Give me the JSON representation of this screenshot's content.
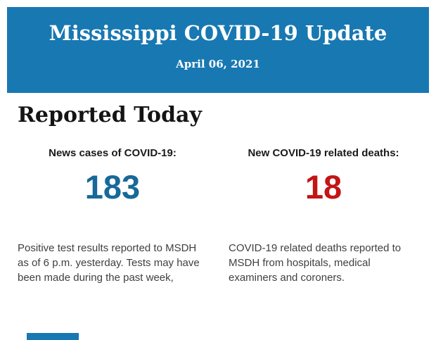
{
  "banner": {
    "title": "Mississippi COVID-19 Update",
    "date": "April 06, 2021",
    "bg_color": "#1878b2",
    "text_color": "#ffffff"
  },
  "section": {
    "title": "Reported Today"
  },
  "stats": [
    {
      "label": "News cases of COVID-19:",
      "value": "183",
      "value_color": "#17699a",
      "description": "Positive test results reported to MSDH as of 6 p.m. yesterday. Tests may have been made during the past week,"
    },
    {
      "label": "New COVID-19 related deaths:",
      "value": "18",
      "value_color": "#c41414",
      "description": "COVID-19 related deaths reported to MSDH from hospitals, medical examiners and coroners."
    }
  ],
  "footer": {
    "next_section_bar_color": "#1878b2"
  }
}
